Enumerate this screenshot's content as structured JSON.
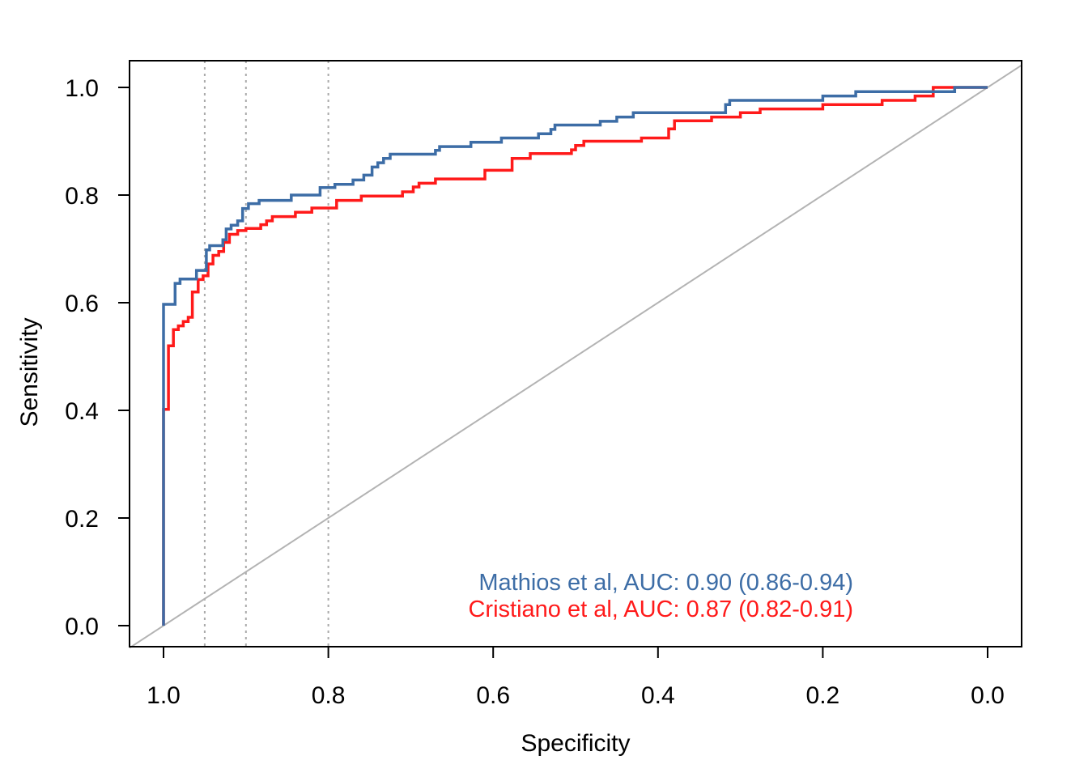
{
  "chart_data": {
    "type": "line",
    "title": "",
    "xlabel": "Specificity",
    "ylabel": "Sensitivity",
    "xlim": [
      1.0,
      0.0
    ],
    "ylim": [
      0.0,
      1.0
    ],
    "x_reversed": true,
    "x_ticks": [
      1.0,
      0.8,
      0.6,
      0.4,
      0.2,
      0.0
    ],
    "x_tick_labels": [
      "1.0",
      "0.8",
      "0.6",
      "0.4",
      "0.2",
      "0.0"
    ],
    "y_ticks": [
      0.0,
      0.2,
      0.4,
      0.6,
      0.8,
      1.0
    ],
    "y_tick_labels": [
      "0.0",
      "0.2",
      "0.4",
      "0.6",
      "0.8",
      "1.0"
    ],
    "grid": false,
    "reference_vlines": [
      0.95,
      0.9,
      0.8
    ],
    "diagonal": true,
    "legend_position": "bottom-right",
    "series": [
      {
        "name": "Mathios et al, AUC: 0.90 (0.86-0.94)",
        "color": "#3d6da6",
        "points": [
          [
            1.0,
            0.0
          ],
          [
            1.0,
            0.597
          ],
          [
            0.986,
            0.597
          ],
          [
            0.986,
            0.636
          ],
          [
            0.98,
            0.636
          ],
          [
            0.98,
            0.644
          ],
          [
            0.96,
            0.644
          ],
          [
            0.96,
            0.66
          ],
          [
            0.948,
            0.66
          ],
          [
            0.948,
            0.698
          ],
          [
            0.944,
            0.698
          ],
          [
            0.944,
            0.706
          ],
          [
            0.928,
            0.706
          ],
          [
            0.928,
            0.717
          ],
          [
            0.924,
            0.717
          ],
          [
            0.924,
            0.737
          ],
          [
            0.918,
            0.737
          ],
          [
            0.918,
            0.744
          ],
          [
            0.91,
            0.744
          ],
          [
            0.91,
            0.752
          ],
          [
            0.904,
            0.752
          ],
          [
            0.904,
            0.775
          ],
          [
            0.897,
            0.775
          ],
          [
            0.897,
            0.784
          ],
          [
            0.884,
            0.784
          ],
          [
            0.884,
            0.79
          ],
          [
            0.845,
            0.79
          ],
          [
            0.845,
            0.8
          ],
          [
            0.81,
            0.8
          ],
          [
            0.81,
            0.814
          ],
          [
            0.792,
            0.814
          ],
          [
            0.792,
            0.82
          ],
          [
            0.77,
            0.82
          ],
          [
            0.77,
            0.828
          ],
          [
            0.757,
            0.828
          ],
          [
            0.757,
            0.837
          ],
          [
            0.747,
            0.837
          ],
          [
            0.747,
            0.852
          ],
          [
            0.74,
            0.852
          ],
          [
            0.74,
            0.86
          ],
          [
            0.733,
            0.86
          ],
          [
            0.733,
            0.868
          ],
          [
            0.725,
            0.868
          ],
          [
            0.725,
            0.876
          ],
          [
            0.67,
            0.876
          ],
          [
            0.67,
            0.883
          ],
          [
            0.665,
            0.883
          ],
          [
            0.665,
            0.89
          ],
          [
            0.627,
            0.89
          ],
          [
            0.627,
            0.898
          ],
          [
            0.59,
            0.898
          ],
          [
            0.59,
            0.906
          ],
          [
            0.545,
            0.906
          ],
          [
            0.545,
            0.914
          ],
          [
            0.53,
            0.914
          ],
          [
            0.53,
            0.922
          ],
          [
            0.525,
            0.922
          ],
          [
            0.525,
            0.93
          ],
          [
            0.47,
            0.93
          ],
          [
            0.47,
            0.937
          ],
          [
            0.45,
            0.937
          ],
          [
            0.45,
            0.945
          ],
          [
            0.43,
            0.945
          ],
          [
            0.43,
            0.953
          ],
          [
            0.318,
            0.953
          ],
          [
            0.318,
            0.968
          ],
          [
            0.313,
            0.968
          ],
          [
            0.313,
            0.976
          ],
          [
            0.2,
            0.976
          ],
          [
            0.2,
            0.984
          ],
          [
            0.16,
            0.984
          ],
          [
            0.16,
            0.992
          ],
          [
            0.04,
            0.992
          ],
          [
            0.04,
            1.0
          ],
          [
            0.0,
            1.0
          ]
        ]
      },
      {
        "name": "Cristiano et al, AUC: 0.87 (0.82-0.91)",
        "color": "#ff1a1a",
        "points": [
          [
            1.0,
            0.0
          ],
          [
            1.0,
            0.402
          ],
          [
            0.994,
            0.402
          ],
          [
            0.994,
            0.52
          ],
          [
            0.988,
            0.52
          ],
          [
            0.988,
            0.55
          ],
          [
            0.982,
            0.55
          ],
          [
            0.982,
            0.557
          ],
          [
            0.976,
            0.557
          ],
          [
            0.976,
            0.565
          ],
          [
            0.97,
            0.565
          ],
          [
            0.97,
            0.573
          ],
          [
            0.965,
            0.573
          ],
          [
            0.965,
            0.62
          ],
          [
            0.958,
            0.62
          ],
          [
            0.958,
            0.643
          ],
          [
            0.952,
            0.643
          ],
          [
            0.952,
            0.65
          ],
          [
            0.946,
            0.65
          ],
          [
            0.946,
            0.672
          ],
          [
            0.94,
            0.672
          ],
          [
            0.94,
            0.688
          ],
          [
            0.933,
            0.688
          ],
          [
            0.933,
            0.695
          ],
          [
            0.927,
            0.695
          ],
          [
            0.927,
            0.712
          ],
          [
            0.92,
            0.712
          ],
          [
            0.92,
            0.727
          ],
          [
            0.91,
            0.727
          ],
          [
            0.91,
            0.734
          ],
          [
            0.9,
            0.734
          ],
          [
            0.9,
            0.738
          ],
          [
            0.882,
            0.738
          ],
          [
            0.882,
            0.745
          ],
          [
            0.875,
            0.745
          ],
          [
            0.875,
            0.752
          ],
          [
            0.868,
            0.752
          ],
          [
            0.868,
            0.76
          ],
          [
            0.84,
            0.76
          ],
          [
            0.84,
            0.768
          ],
          [
            0.82,
            0.768
          ],
          [
            0.82,
            0.776
          ],
          [
            0.79,
            0.776
          ],
          [
            0.79,
            0.79
          ],
          [
            0.76,
            0.79
          ],
          [
            0.76,
            0.798
          ],
          [
            0.71,
            0.798
          ],
          [
            0.71,
            0.806
          ],
          [
            0.697,
            0.806
          ],
          [
            0.697,
            0.815
          ],
          [
            0.69,
            0.815
          ],
          [
            0.69,
            0.822
          ],
          [
            0.67,
            0.822
          ],
          [
            0.67,
            0.83
          ],
          [
            0.61,
            0.83
          ],
          [
            0.61,
            0.846
          ],
          [
            0.577,
            0.846
          ],
          [
            0.577,
            0.868
          ],
          [
            0.555,
            0.868
          ],
          [
            0.555,
            0.877
          ],
          [
            0.505,
            0.877
          ],
          [
            0.505,
            0.884
          ],
          [
            0.5,
            0.884
          ],
          [
            0.5,
            0.892
          ],
          [
            0.49,
            0.892
          ],
          [
            0.49,
            0.9
          ],
          [
            0.42,
            0.9
          ],
          [
            0.42,
            0.906
          ],
          [
            0.387,
            0.906
          ],
          [
            0.387,
            0.923
          ],
          [
            0.38,
            0.923
          ],
          [
            0.38,
            0.938
          ],
          [
            0.335,
            0.938
          ],
          [
            0.335,
            0.945
          ],
          [
            0.3,
            0.945
          ],
          [
            0.3,
            0.953
          ],
          [
            0.276,
            0.953
          ],
          [
            0.276,
            0.96
          ],
          [
            0.2,
            0.96
          ],
          [
            0.2,
            0.968
          ],
          [
            0.128,
            0.968
          ],
          [
            0.128,
            0.976
          ],
          [
            0.088,
            0.976
          ],
          [
            0.088,
            0.984
          ],
          [
            0.066,
            0.984
          ],
          [
            0.066,
            1.0
          ],
          [
            0.0,
            1.0
          ]
        ]
      }
    ]
  }
}
